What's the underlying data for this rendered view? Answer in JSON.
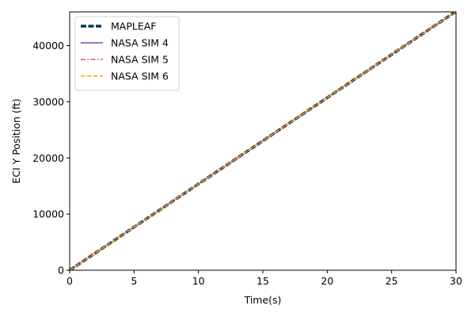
{
  "chart_data": {
    "type": "line",
    "xlabel": "Time(s)",
    "ylabel": "ECI Y Position (ft)",
    "xlim": [
      0,
      30
    ],
    "ylim": [
      0,
      46000
    ],
    "x_ticks": [
      0,
      5,
      10,
      15,
      20,
      25,
      30
    ],
    "y_ticks": [
      0,
      10000,
      20000,
      30000,
      40000
    ],
    "grid": false,
    "legend_position": "upper-left",
    "series": [
      {
        "name": "MAPLEAF",
        "color": "#053752",
        "line_style": "dashed-thick",
        "x": [
          0,
          5,
          10,
          15,
          20,
          25,
          30
        ],
        "values": [
          0,
          7680,
          15360,
          23040,
          30720,
          38400,
          46080
        ]
      },
      {
        "name": "NASA SIM 4",
        "color": "#7a43b6",
        "line_style": "solid",
        "x": [
          0,
          5,
          10,
          15,
          20,
          25,
          30
        ],
        "values": [
          0,
          7680,
          15360,
          23040,
          30720,
          38400,
          46080
        ]
      },
      {
        "name": "NASA SIM 5",
        "color": "#f14c61",
        "line_style": "dash-dot",
        "x": [
          0,
          5,
          10,
          15,
          20,
          25,
          30
        ],
        "values": [
          0,
          7680,
          15360,
          23040,
          30720,
          38400,
          46080
        ]
      },
      {
        "name": "NASA SIM 6",
        "color": "#ffa400",
        "line_style": "dashed",
        "x": [
          0,
          5,
          10,
          15,
          20,
          25,
          30
        ],
        "values": [
          0,
          7680,
          15360,
          23040,
          30720,
          38400,
          46080
        ]
      }
    ]
  }
}
